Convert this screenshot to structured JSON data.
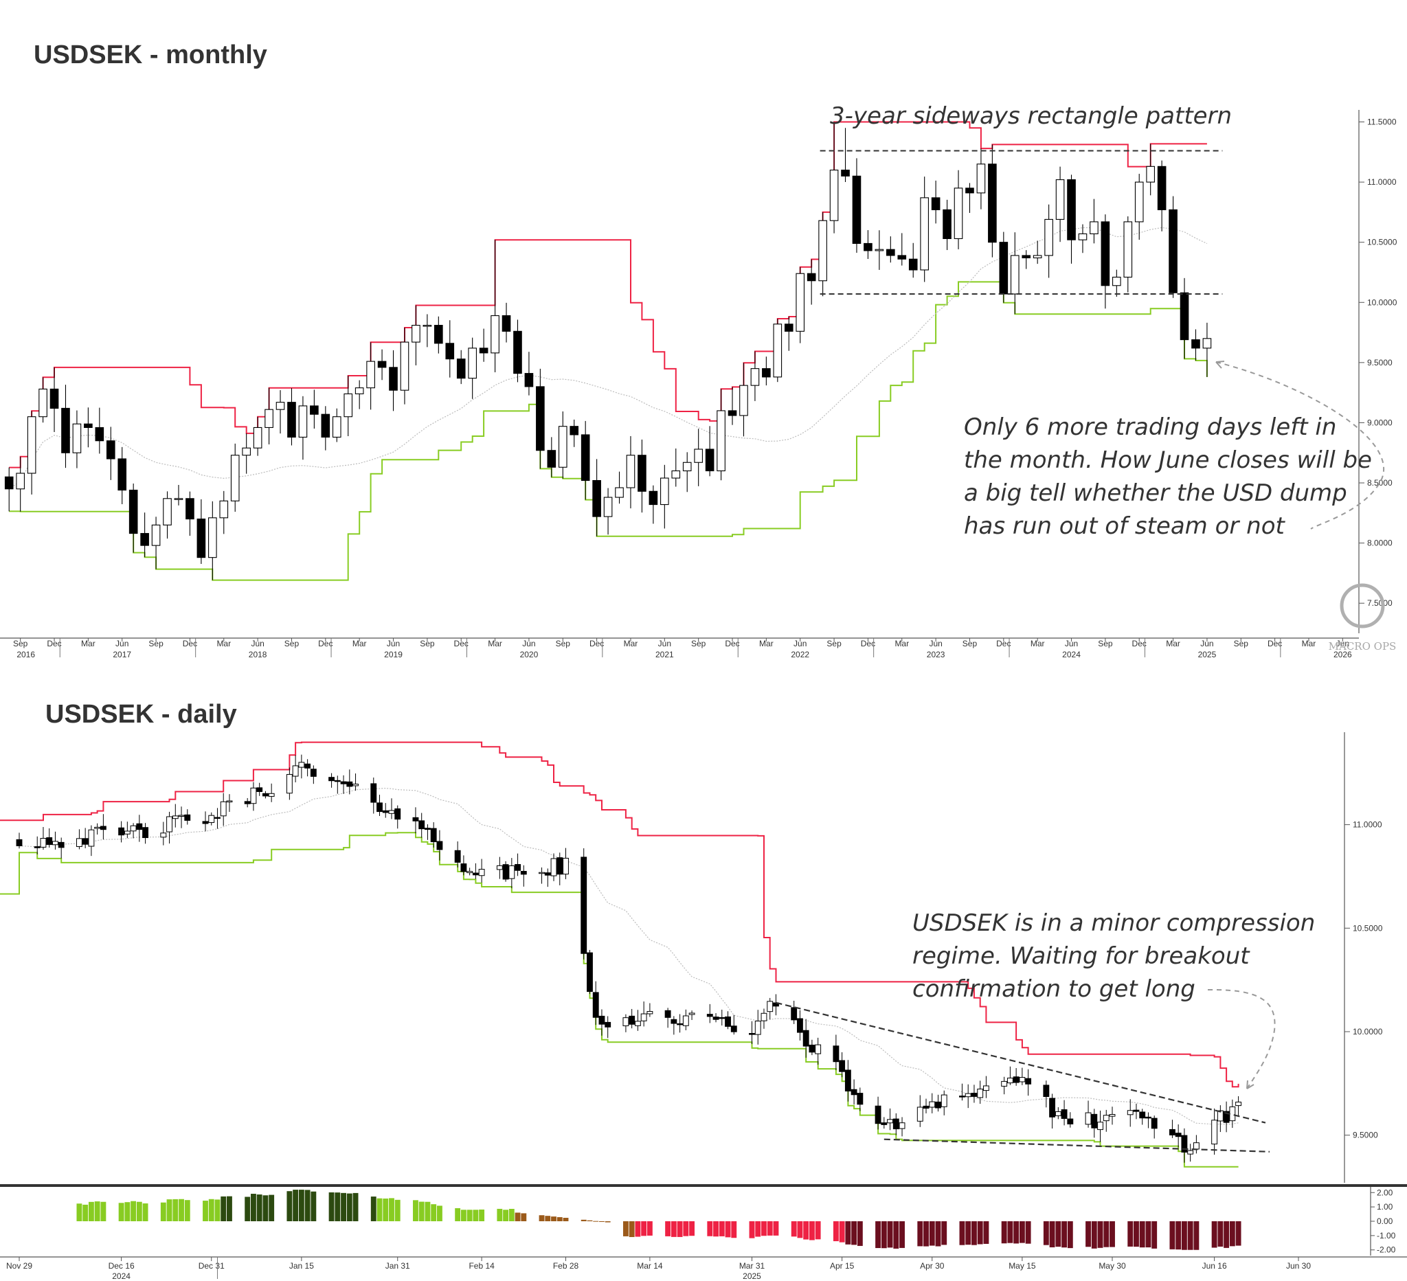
{
  "colors": {
    "upper_band": "#ee2244",
    "lower_band": "#88cc22",
    "mid_line": "#bbbbbb",
    "bear_candle": "#000000",
    "bull_candle": "#ffffff",
    "hist_pos_light": "#88cc22",
    "hist_pos_dark": "#2c4a10",
    "hist_neg_light": "#ee2244",
    "hist_neg_dark": "#6b0f1f",
    "hist_transition": "#9b5a1a"
  },
  "watermark": "MACRO OPS",
  "monthly": {
    "title": "USDSEK - monthly",
    "annotation_top": "3-year sideways rectangle pattern",
    "annotation_note": [
      "Only 6 more trading days left in",
      "the month. How June closes will be",
      "a big tell whether the USD dump",
      "has run out of steam or not"
    ],
    "y_ticks": [
      "11.5000",
      "11.0000",
      "10.5000",
      "10.0000",
      "9.5000",
      "9.0000",
      "8.5000",
      "8.0000",
      "7.5000"
    ],
    "x_month_labels": [
      "Sep",
      "Dec",
      "Mar",
      "Jun",
      "Sep",
      "Dec",
      "Mar",
      "Jun",
      "Sep",
      "Dec",
      "Mar",
      "Jun",
      "Sep",
      "Dec",
      "Mar",
      "Jun",
      "Sep",
      "Dec",
      "Mar",
      "Jun",
      "Sep",
      "Dec",
      "Mar",
      "Jun",
      "Sep",
      "Dec",
      "Mar",
      "Jun",
      "Sep",
      "Dec",
      "Mar",
      "Jun",
      "Sep",
      "Dec",
      "Mar",
      "Jun",
      "Sep",
      "Dec",
      "Mar",
      "Jun"
    ],
    "x_year_labels": [
      "2016",
      "2017",
      "2018",
      "2019",
      "2020",
      "2021",
      "2022",
      "2023",
      "2024",
      "2025",
      "2026"
    ],
    "chart_data": {
      "type": "candlestick",
      "period": "monthly",
      "x_range": [
        "2016-08",
        "2026-06"
      ],
      "y_range": [
        7.25,
        11.6
      ],
      "resistance_level": 11.26,
      "support_level": 10.07,
      "closes": [
        [
          "2016-08",
          8.45
        ],
        [
          "2016-09",
          8.58
        ],
        [
          "2016-10",
          9.05
        ],
        [
          "2016-11",
          9.28
        ],
        [
          "2016-12",
          9.12
        ],
        [
          "2017-01",
          8.75
        ],
        [
          "2017-02",
          8.99
        ],
        [
          "2017-03",
          8.96
        ],
        [
          "2017-04",
          8.85
        ],
        [
          "2017-05",
          8.7
        ],
        [
          "2017-06",
          8.44
        ],
        [
          "2017-07",
          8.08
        ],
        [
          "2017-08",
          7.98
        ],
        [
          "2017-09",
          8.15
        ],
        [
          "2017-10",
          8.37
        ],
        [
          "2017-11",
          8.37
        ],
        [
          "2017-12",
          8.2
        ],
        [
          "2018-01",
          7.88
        ],
        [
          "2018-02",
          8.21
        ],
        [
          "2018-03",
          8.35
        ],
        [
          "2018-04",
          8.73
        ],
        [
          "2018-05",
          8.79
        ],
        [
          "2018-06",
          8.96
        ],
        [
          "2018-07",
          9.11
        ],
        [
          "2018-08",
          9.17
        ],
        [
          "2018-09",
          8.88
        ],
        [
          "2018-10",
          9.14
        ],
        [
          "2018-11",
          9.07
        ],
        [
          "2018-12",
          8.88
        ],
        [
          "2019-01",
          9.05
        ],
        [
          "2019-02",
          9.24
        ],
        [
          "2019-03",
          9.29
        ],
        [
          "2019-04",
          9.51
        ],
        [
          "2019-05",
          9.46
        ],
        [
          "2019-06",
          9.27
        ],
        [
          "2019-07",
          9.67
        ],
        [
          "2019-08",
          9.81
        ],
        [
          "2019-09",
          9.81
        ],
        [
          "2019-10",
          9.66
        ],
        [
          "2019-11",
          9.53
        ],
        [
          "2019-12",
          9.37
        ],
        [
          "2020-01",
          9.62
        ],
        [
          "2020-02",
          9.58
        ],
        [
          "2020-03",
          9.89
        ],
        [
          "2020-04",
          9.76
        ],
        [
          "2020-05",
          9.41
        ],
        [
          "2020-06",
          9.3
        ],
        [
          "2020-07",
          8.77
        ],
        [
          "2020-08",
          8.63
        ],
        [
          "2020-09",
          8.97
        ],
        [
          "2020-10",
          8.9
        ],
        [
          "2020-11",
          8.52
        ],
        [
          "2020-12",
          8.22
        ],
        [
          "2021-01",
          8.38
        ],
        [
          "2021-02",
          8.46
        ],
        [
          "2021-03",
          8.73
        ],
        [
          "2021-04",
          8.43
        ],
        [
          "2021-05",
          8.32
        ],
        [
          "2021-06",
          8.54
        ],
        [
          "2021-07",
          8.6
        ],
        [
          "2021-08",
          8.67
        ],
        [
          "2021-09",
          8.78
        ],
        [
          "2021-10",
          8.6
        ],
        [
          "2021-11",
          9.1
        ],
        [
          "2021-12",
          9.06
        ],
        [
          "2022-01",
          9.31
        ],
        [
          "2022-02",
          9.45
        ],
        [
          "2022-03",
          9.38
        ],
        [
          "2022-04",
          9.82
        ],
        [
          "2022-05",
          9.76
        ],
        [
          "2022-06",
          10.24
        ],
        [
          "2022-07",
          10.18
        ],
        [
          "2022-08",
          10.68
        ],
        [
          "2022-09",
          11.1
        ],
        [
          "2022-10",
          11.05
        ],
        [
          "2022-11",
          10.49
        ],
        [
          "2022-12",
          10.43
        ],
        [
          "2023-01",
          10.44
        ],
        [
          "2023-02",
          10.39
        ],
        [
          "2023-03",
          10.36
        ],
        [
          "2023-04",
          10.27
        ],
        [
          "2023-05",
          10.87
        ],
        [
          "2023-06",
          10.77
        ],
        [
          "2023-07",
          10.53
        ],
        [
          "2023-08",
          10.95
        ],
        [
          "2023-09",
          10.91
        ],
        [
          "2023-10",
          11.15
        ],
        [
          "2023-11",
          10.5
        ],
        [
          "2023-12",
          10.07
        ],
        [
          "2024-01",
          10.39
        ],
        [
          "2024-02",
          10.37
        ],
        [
          "2024-03",
          10.39
        ],
        [
          "2024-04",
          10.69
        ],
        [
          "2024-05",
          11.02
        ],
        [
          "2024-06",
          10.52
        ],
        [
          "2024-07",
          10.57
        ],
        [
          "2024-08",
          10.67
        ],
        [
          "2024-09",
          10.14
        ],
        [
          "2024-10",
          10.21
        ],
        [
          "2024-11",
          10.67
        ],
        [
          "2024-12",
          11.0
        ],
        [
          "2025-01",
          11.13
        ],
        [
          "2025-02",
          10.77
        ],
        [
          "2025-03",
          10.08
        ],
        [
          "2025-04",
          9.69
        ],
        [
          "2025-05",
          9.62
        ],
        [
          "2025-06",
          9.7
        ]
      ]
    }
  },
  "daily": {
    "title": "USDSEK - daily",
    "annotation_note": [
      "USDSEK is in a minor compression",
      "regime. Waiting for breakout",
      "confirmation to get long"
    ],
    "y_ticks": [
      "11.0000",
      "10.5000",
      "10.0000",
      "9.5000"
    ],
    "hist_ticks": [
      "2.00",
      "1.00",
      "0.00",
      "-1.00",
      "-2.00"
    ],
    "x_labels": [
      "Nov 29",
      "Dec 16",
      "Dec 31",
      "Jan 15",
      "Jan 31",
      "Feb 14",
      "Feb 28",
      "Mar 14",
      "Mar 31",
      "Apr 15",
      "Apr 30",
      "May 15",
      "May 30",
      "Jun 16",
      "Jun 30"
    ],
    "x_year_labels": [
      "2024",
      "2025"
    ],
    "chart_data": {
      "type": "candlestick",
      "period": "daily",
      "x_range": [
        "2024-11-29",
        "2025-06-30"
      ],
      "y_range": [
        9.27,
        11.44
      ],
      "last_close": 9.66,
      "closes": [
        [
          "2024-11-29",
          10.92
        ],
        [
          "2024-12-16",
          10.95
        ],
        [
          "2024-12-31",
          11.04
        ],
        [
          "2025-01-15",
          11.27
        ],
        [
          "2025-01-31",
          11.06
        ],
        [
          "2025-02-14",
          10.75
        ],
        [
          "2025-02-28",
          10.8
        ],
        [
          "2025-03-05",
          10.05
        ],
        [
          "2025-03-14",
          10.08
        ],
        [
          "2025-03-31",
          10.02
        ],
        [
          "2025-04-04",
          10.13
        ],
        [
          "2025-04-15",
          9.78
        ],
        [
          "2025-04-22",
          9.52
        ],
        [
          "2025-04-30",
          9.67
        ],
        [
          "2025-05-09",
          9.72
        ],
        [
          "2025-05-15",
          9.79
        ],
        [
          "2025-05-22",
          9.54
        ],
        [
          "2025-05-30",
          9.6
        ],
        [
          "2025-06-06",
          9.55
        ],
        [
          "2025-06-12",
          9.44
        ],
        [
          "2025-06-19",
          9.63
        ],
        [
          "2025-06-20",
          9.66
        ]
      ]
    }
  }
}
